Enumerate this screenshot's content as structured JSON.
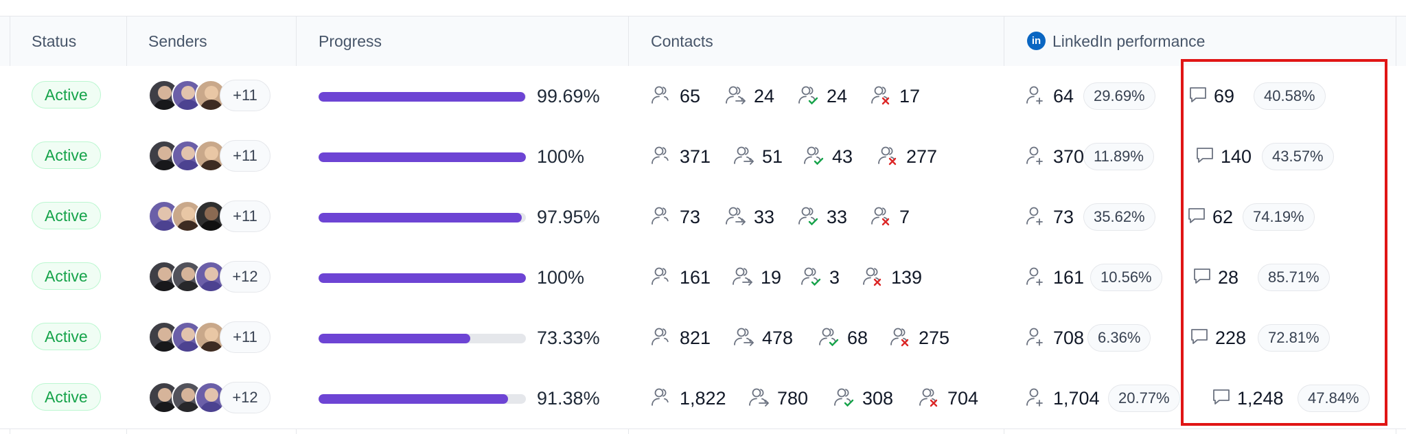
{
  "columns": {
    "status": "Status",
    "senders": "Senders",
    "progress": "Progress",
    "contacts": "Contacts",
    "linkedin": "LinkedIn performance"
  },
  "linkedin_icon_text": "in",
  "colors": {
    "progress_fill": "#6d44d4",
    "active_badge": "#16a34a",
    "linkedin_blue": "#0a66c2",
    "highlight_box": "#e01515",
    "reject_mark": "#dc2626",
    "accept_mark": "#16a34a"
  },
  "icons": {
    "contacts": "people-icon",
    "contacted": "people-arrow-icon",
    "accepted": "people-check-icon",
    "rejected": "people-x-icon",
    "connections": "person-plus-icon",
    "messages": "chat-bubble-icon"
  },
  "rows": [
    {
      "status": "Active",
      "senders_more": "+11",
      "progress": "99.69%",
      "progress_value": 99.69,
      "contacts": "65",
      "contacted": "24",
      "accepted": "24",
      "rejected": "17",
      "li_connections": "64",
      "li_conn_rate": "29.69%",
      "li_messages": "69",
      "li_msg_rate": "40.58%"
    },
    {
      "status": "Active",
      "senders_more": "+11",
      "progress": "100%",
      "progress_value": 100,
      "contacts": "371",
      "contacted": "51",
      "accepted": "43",
      "rejected": "277",
      "li_connections": "370",
      "li_conn_rate": "11.89%",
      "li_messages": "140",
      "li_msg_rate": "43.57%"
    },
    {
      "status": "Active",
      "senders_more": "+11",
      "progress": "97.95%",
      "progress_value": 97.95,
      "contacts": "73",
      "contacted": "33",
      "accepted": "33",
      "rejected": "7",
      "li_connections": "73",
      "li_conn_rate": "35.62%",
      "li_messages": "62",
      "li_msg_rate": "74.19%"
    },
    {
      "status": "Active",
      "senders_more": "+12",
      "progress": "100%",
      "progress_value": 100,
      "contacts": "161",
      "contacted": "19",
      "accepted": "3",
      "rejected": "139",
      "li_connections": "161",
      "li_conn_rate": "10.56%",
      "li_messages": "28",
      "li_msg_rate": "85.71%"
    },
    {
      "status": "Active",
      "senders_more": "+11",
      "progress": "73.33%",
      "progress_value": 73.33,
      "contacts": "821",
      "contacted": "478",
      "accepted": "68",
      "rejected": "275",
      "li_connections": "708",
      "li_conn_rate": "6.36%",
      "li_messages": "228",
      "li_msg_rate": "72.81%"
    },
    {
      "status": "Active",
      "senders_more": "+12",
      "progress": "91.38%",
      "progress_value": 91.38,
      "contacts": "1,822",
      "contacted": "780",
      "accepted": "308",
      "rejected": "704",
      "li_connections": "1,704",
      "li_conn_rate": "20.77%",
      "li_messages": "1,248",
      "li_msg_rate": "47.84%"
    }
  ]
}
